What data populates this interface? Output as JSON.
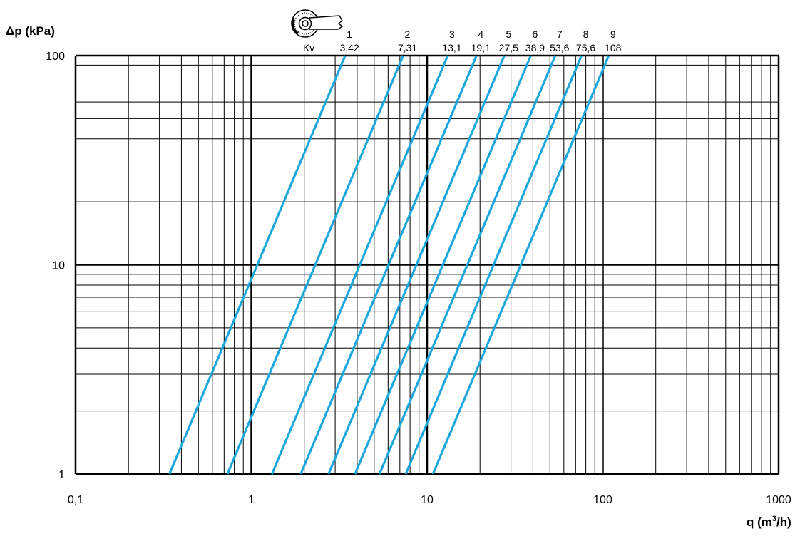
{
  "chart_data": {
    "type": "line",
    "x_scale": "log",
    "y_scale": "log",
    "xlim": [
      0.1,
      1000
    ],
    "ylim": [
      1,
      100
    ],
    "grid": true,
    "ylabel": "Δp (kPa)",
    "xlabel_main": "q (m",
    "xlabel_sup": "3",
    "xlabel_end": "/h)",
    "x_ticks": [
      "0,1",
      "1",
      "10",
      "100",
      "1000"
    ],
    "y_ticks": [
      "1",
      "10",
      "100"
    ],
    "kv_label": "Kv",
    "line_color": "#1aa7dc",
    "series": [
      {
        "name": "1",
        "kv_label": "3,42",
        "kv": 3.42,
        "x": [
          0.342,
          3.42
        ],
        "y": [
          1,
          100
        ]
      },
      {
        "name": "2",
        "kv_label": "7,31",
        "kv": 7.31,
        "x": [
          0.731,
          7.31
        ],
        "y": [
          1,
          100
        ]
      },
      {
        "name": "3",
        "kv_label": "13,1",
        "kv": 13.1,
        "x": [
          1.31,
          13.1
        ],
        "y": [
          1,
          100
        ]
      },
      {
        "name": "4",
        "kv_label": "19,1",
        "kv": 19.1,
        "x": [
          1.91,
          19.1
        ],
        "y": [
          1,
          100
        ]
      },
      {
        "name": "5",
        "kv_label": "27,5",
        "kv": 27.5,
        "x": [
          2.75,
          27.5
        ],
        "y": [
          1,
          100
        ]
      },
      {
        "name": "6",
        "kv_label": "38,9",
        "kv": 38.9,
        "x": [
          3.89,
          38.9
        ],
        "y": [
          1,
          100
        ]
      },
      {
        "name": "7",
        "kv_label": "53,6",
        "kv": 53.6,
        "x": [
          5.36,
          53.6
        ],
        "y": [
          1,
          100
        ]
      },
      {
        "name": "8",
        "kv_label": "75,6",
        "kv": 75.6,
        "x": [
          7.56,
          75.6
        ],
        "y": [
          1,
          100
        ]
      },
      {
        "name": "9",
        "kv_label": "108",
        "kv": 108,
        "x": [
          10.8,
          108
        ],
        "y": [
          1,
          100
        ]
      }
    ]
  }
}
